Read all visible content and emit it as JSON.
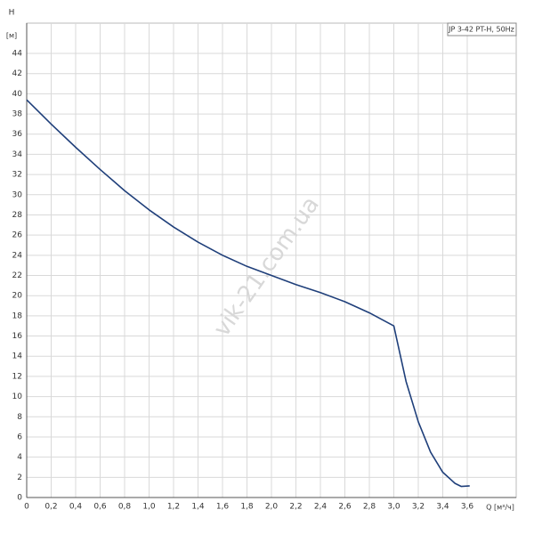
{
  "chart_data": {
    "type": "line",
    "legend_label": "JP 3-42 PT-H, 50Hz",
    "y_label": "H",
    "y_unit": "[м]",
    "x_label": "Q [м³/ч]",
    "watermark": "vik-21.com.ua",
    "xlim": [
      0,
      4.0
    ],
    "ylim": [
      0,
      47
    ],
    "xticks": [
      0,
      {
        "value": 0.2,
        "label": "0,2"
      },
      {
        "value": 0.4,
        "label": "0,4"
      },
      {
        "value": 0.6,
        "label": "0,6"
      },
      {
        "value": 0.8,
        "label": "0,8"
      },
      {
        "value": 1.0,
        "label": "1,0"
      },
      {
        "value": 1.2,
        "label": "1,2"
      },
      {
        "value": 1.4,
        "label": "1,4"
      },
      {
        "value": 1.6,
        "label": "1,6"
      },
      {
        "value": 1.8,
        "label": "1,8"
      },
      {
        "value": 2.0,
        "label": "2,0"
      },
      {
        "value": 2.2,
        "label": "2,2"
      },
      {
        "value": 2.4,
        "label": "2,4"
      },
      {
        "value": 2.6,
        "label": "2,6"
      },
      {
        "value": 2.8,
        "label": "2,8"
      },
      {
        "value": 3.0,
        "label": "3,0"
      },
      {
        "value": 3.2,
        "label": "3,2"
      },
      {
        "value": 3.4,
        "label": "3,4"
      },
      {
        "value": 3.6,
        "label": "3,6"
      }
    ],
    "yticks": [
      0,
      2,
      4,
      6,
      8,
      10,
      12,
      14,
      16,
      18,
      20,
      22,
      24,
      26,
      28,
      30,
      32,
      34,
      36,
      38,
      40,
      42,
      44
    ],
    "grid": true,
    "series": [
      {
        "color": "#1f3f7a",
        "x": [
          0,
          0.2,
          0.4,
          0.6,
          0.8,
          1.0,
          1.2,
          1.4,
          1.6,
          1.8,
          2.0,
          2.2,
          2.4,
          2.6,
          2.8,
          3.0,
          3.1,
          3.2,
          3.3,
          3.4,
          3.5,
          3.55,
          3.62
        ],
        "values": [
          39.4,
          37,
          34.7,
          32.5,
          30.4,
          28.5,
          26.8,
          25.3,
          24,
          22.9,
          22,
          21.1,
          20.3,
          19.4,
          18.3,
          17,
          11.5,
          7.5,
          4.5,
          2.5,
          1.4,
          1.1,
          1.15
        ]
      }
    ]
  }
}
